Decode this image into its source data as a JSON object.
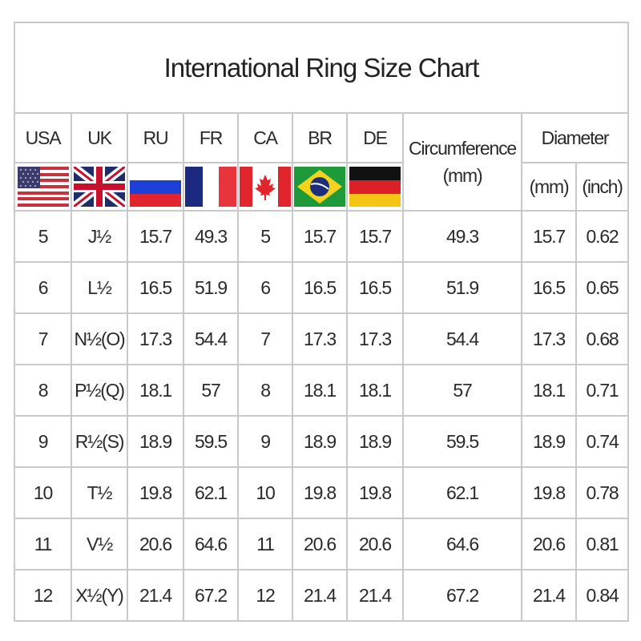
{
  "title": "International Ring Size Chart",
  "headers": {
    "usa": "USA",
    "uk": "UK",
    "ru": "RU",
    "fr": "FR",
    "ca": "CA",
    "br": "BR",
    "de": "DE",
    "circumference": "Circumference",
    "circumference_unit": "(mm)",
    "diameter": "Diameter",
    "diameter_mm": "(mm)",
    "diameter_inch": "(inch)"
  },
  "flags": [
    "us-flag-icon",
    "uk-flag-icon",
    "russia-flag-icon",
    "france-flag-icon",
    "canada-flag-icon",
    "brazil-flag-icon",
    "germany-flag-icon"
  ],
  "rows": [
    [
      "5",
      "J½",
      "15.7",
      "49.3",
      "5",
      "15.7",
      "15.7",
      "49.3",
      "15.7",
      "0.62"
    ],
    [
      "6",
      "L½",
      "16.5",
      "51.9",
      "6",
      "16.5",
      "16.5",
      "51.9",
      "16.5",
      "0.65"
    ],
    [
      "7",
      "N½(O)",
      "17.3",
      "54.4",
      "7",
      "17.3",
      "17.3",
      "54.4",
      "17.3",
      "0.68"
    ],
    [
      "8",
      "P½(Q)",
      "18.1",
      "57",
      "8",
      "18.1",
      "18.1",
      "57",
      "18.1",
      "0.71"
    ],
    [
      "9",
      "R½(S)",
      "18.9",
      "59.5",
      "9",
      "18.9",
      "18.9",
      "59.5",
      "18.9",
      "0.74"
    ],
    [
      "10",
      "T½",
      "19.8",
      "62.1",
      "10",
      "19.8",
      "19.8",
      "62.1",
      "19.8",
      "0.78"
    ],
    [
      "11",
      "V½",
      "20.6",
      "64.6",
      "11",
      "20.6",
      "20.6",
      "64.6",
      "20.6",
      "0.81"
    ],
    [
      "12",
      "X½(Y)",
      "21.4",
      "67.2",
      "12",
      "21.4",
      "21.4",
      "67.2",
      "21.4",
      "0.84"
    ]
  ]
}
